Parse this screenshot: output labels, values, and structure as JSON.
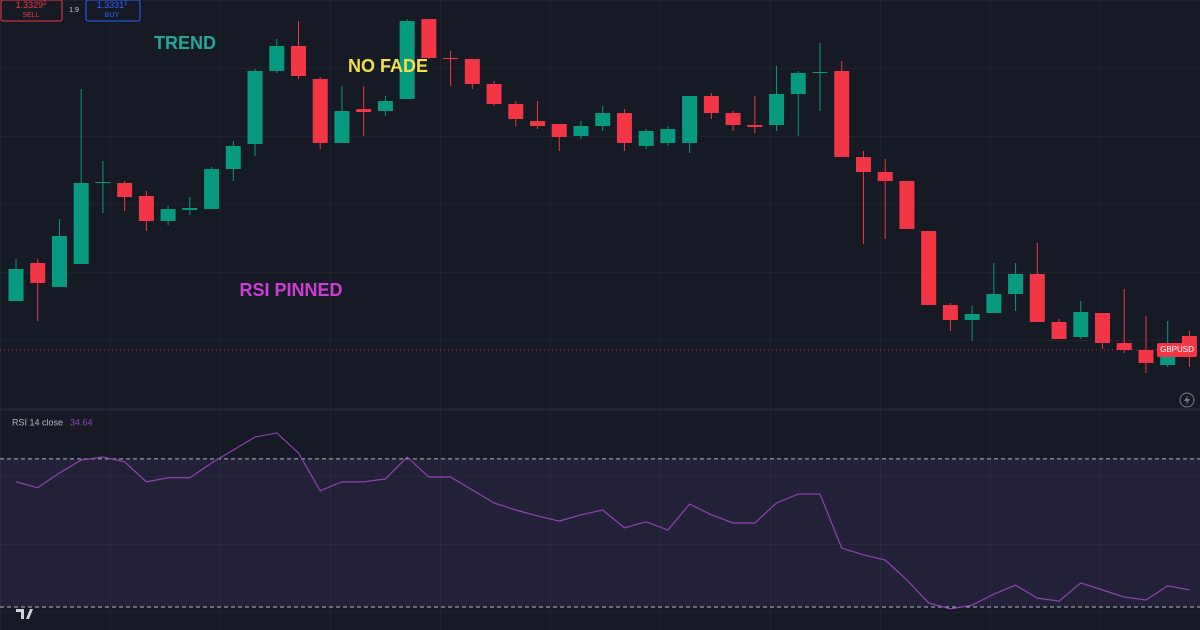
{
  "ui": {
    "sell_price": "1.3329",
    "sell_pip": "2",
    "sell_label": "SELL",
    "spread": "1.9",
    "buy_price": "1.3331",
    "buy_pip": "1",
    "buy_label": "BUY"
  },
  "chart_data": [
    {
      "type": "candlestick",
      "symbol": "GBPUSD",
      "up_color": "#089981",
      "down_color": "#f23645",
      "ylim": [
        1.3324,
        1.3365
      ],
      "annotations": [
        {
          "text": "TREND",
          "color": "#26a69a"
        },
        {
          "text": "NO FADE",
          "color": "#f5e04a"
        },
        {
          "text": "RSI PINNED",
          "color": "#d03cd8"
        }
      ],
      "open": [
        1.33349,
        1.33387,
        1.33363,
        1.33386,
        1.33467,
        1.33467,
        1.33454,
        1.33429,
        1.3344,
        1.33441,
        1.33481,
        1.33506,
        1.33579,
        1.33604,
        1.33571,
        1.33507,
        1.33541,
        1.33539,
        1.33551,
        1.33631,
        1.33592,
        1.33591,
        1.33566,
        1.33546,
        1.33529,
        1.33526,
        1.33514,
        1.33524,
        1.33537,
        1.33504,
        1.33507,
        1.33507,
        1.33554,
        1.33537,
        1.33525,
        1.33525,
        1.33556,
        1.33577,
        1.33579,
        1.33493,
        1.33478,
        1.33469,
        1.33419,
        1.33345,
        1.3333,
        1.33337,
        1.33356,
        1.33376,
        1.33328,
        1.33313,
        1.33337,
        1.33307,
        1.333,
        1.33285,
        1.33314
      ],
      "high": [
        1.33391,
        1.33391,
        1.33431,
        1.33561,
        1.33489,
        1.33469,
        1.33459,
        1.33444,
        1.33453,
        1.33483,
        1.33509,
        1.33581,
        1.33611,
        1.33629,
        1.33573,
        1.33564,
        1.33564,
        1.33554,
        1.33631,
        1.33631,
        1.33599,
        1.33591,
        1.33569,
        1.33549,
        1.33549,
        1.33526,
        1.33529,
        1.33544,
        1.33541,
        1.33521,
        1.33524,
        1.33554,
        1.33557,
        1.33539,
        1.33554,
        1.33584,
        1.33579,
        1.33607,
        1.33589,
        1.33499,
        1.33491,
        1.33469,
        1.33419,
        1.33347,
        1.33344,
        1.33387,
        1.33387,
        1.33407,
        1.33331,
        1.33349,
        1.33337,
        1.33361,
        1.33334,
        1.33329,
        1.33319
      ],
      "low": [
        1.33349,
        1.33329,
        1.33363,
        1.33386,
        1.33437,
        1.33439,
        1.33419,
        1.33425,
        1.33435,
        1.33441,
        1.33469,
        1.33494,
        1.33577,
        1.33571,
        1.33501,
        1.33507,
        1.33514,
        1.33534,
        1.33551,
        1.33591,
        1.33564,
        1.33561,
        1.33544,
        1.33524,
        1.33521,
        1.33499,
        1.33511,
        1.33519,
        1.33499,
        1.33501,
        1.33504,
        1.33497,
        1.33531,
        1.33519,
        1.33517,
        1.33519,
        1.33514,
        1.33539,
        1.33493,
        1.33406,
        1.33411,
        1.33421,
        1.33345,
        1.33319,
        1.33309,
        1.33337,
        1.33339,
        1.33328,
        1.33311,
        1.33311,
        1.33301,
        1.33297,
        1.33277,
        1.33283,
        1.33283
      ],
      "close": [
        1.33381,
        1.33367,
        1.33414,
        1.33467,
        1.33468,
        1.33453,
        1.33429,
        1.33441,
        1.33442,
        1.33481,
        1.33504,
        1.33579,
        1.33604,
        1.33574,
        1.33507,
        1.33539,
        1.33538,
        1.33549,
        1.33629,
        1.33592,
        1.33591,
        1.33566,
        1.33546,
        1.33531,
        1.33524,
        1.33513,
        1.33524,
        1.33537,
        1.33507,
        1.33519,
        1.33521,
        1.33554,
        1.33537,
        1.33525,
        1.33523,
        1.33556,
        1.33577,
        1.33578,
        1.33493,
        1.33478,
        1.33469,
        1.33421,
        1.33345,
        1.3333,
        1.33336,
        1.33356,
        1.33376,
        1.33328,
        1.33311,
        1.33338,
        1.33307,
        1.333,
        1.33287,
        1.33304,
        1.333
      ]
    },
    {
      "type": "line",
      "title": "RSI 14 close",
      "color": "#8e44ad",
      "band_color": "#7e57c2",
      "ylim": [
        23.8,
        83.2
      ],
      "levels": [
        70,
        30
      ],
      "values": [
        63.8,
        62.2,
        66.2,
        69.7,
        70.5,
        69.2,
        63.8,
        64.9,
        64.9,
        68.9,
        72.4,
        75.9,
        77.0,
        71.6,
        61.4,
        63.8,
        63.8,
        64.6,
        70.5,
        65.1,
        65.1,
        61.6,
        58.1,
        56.2,
        54.6,
        53.2,
        54.9,
        56.2,
        51.4,
        53.0,
        50.8,
        57.8,
        54.9,
        52.7,
        52.7,
        58.1,
        60.5,
        60.5,
        45.9,
        44.1,
        42.7,
        37.3,
        31.1,
        29.5,
        30.5,
        33.5,
        35.9,
        32.4,
        31.6,
        36.5,
        34.6,
        32.7,
        31.9,
        35.7,
        34.64
      ]
    }
  ]
}
